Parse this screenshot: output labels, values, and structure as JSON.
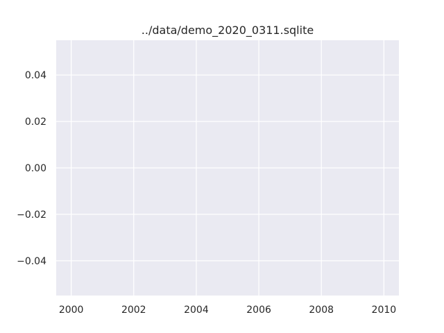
{
  "chart_data": {
    "type": "line",
    "title": "../data/demo_2020_0311.sqlite",
    "xlabel": "",
    "ylabel": "",
    "x_tick_labels": [
      "2000",
      "2002",
      "2004",
      "2006",
      "2008",
      "2010"
    ],
    "x_ticks": [
      2000,
      2002,
      2004,
      2006,
      2008,
      2010
    ],
    "y_tick_labels": [
      "0.04",
      "0.02",
      "0.00",
      "−0.02",
      "−0.04"
    ],
    "y_ticks": [
      0.04,
      0.02,
      0.0,
      -0.02,
      -0.04
    ],
    "xlim": [
      1999.52,
      2010.48
    ],
    "ylim": [
      -0.055,
      0.055
    ],
    "grid": true,
    "series": [],
    "colors": {
      "plot_background": "#eaeaf2",
      "grid": "#ffffff",
      "text": "#262626"
    }
  }
}
